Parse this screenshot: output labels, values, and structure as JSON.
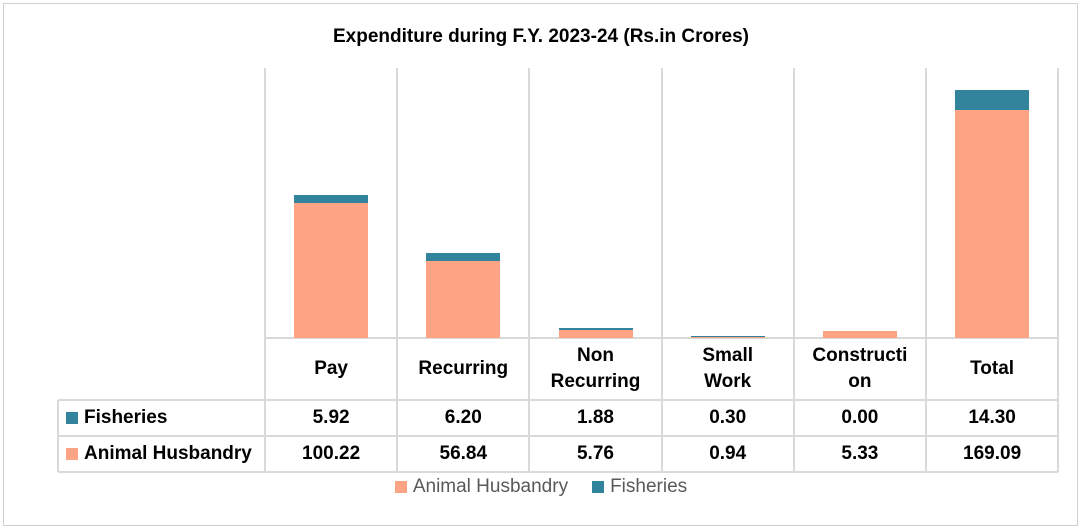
{
  "chart_data": {
    "type": "bar",
    "stacked": true,
    "title": "Expenditure during F.Y. 2023-24 (Rs.in Crores)",
    "categories": [
      "Pay",
      "Recurring",
      "Non Recurring",
      "Small Work",
      "Construction",
      "Total"
    ],
    "series": [
      {
        "name": "Animal Husbandry",
        "color": "#FFA385",
        "values": [
          100.22,
          56.84,
          5.76,
          0.94,
          5.33,
          169.09
        ]
      },
      {
        "name": "Fisheries",
        "color": "#31849B",
        "values": [
          5.92,
          6.2,
          1.88,
          0.3,
          0.0,
          14.3
        ]
      }
    ],
    "value_labels": {
      "Fisheries": [
        "5.92",
        "6.20",
        "1.88",
        "0.30",
        "0.00",
        "14.30"
      ],
      "Animal Husbandry": [
        "100.22",
        "56.84",
        "5.76",
        "0.94",
        "5.33",
        "169.09"
      ]
    },
    "table_row_order": [
      "Fisheries",
      "Animal Husbandry"
    ],
    "ylim": [
      0,
      200
    ],
    "grid": "vertical",
    "legend": "bottom",
    "xlabel": "",
    "ylabel": ""
  }
}
